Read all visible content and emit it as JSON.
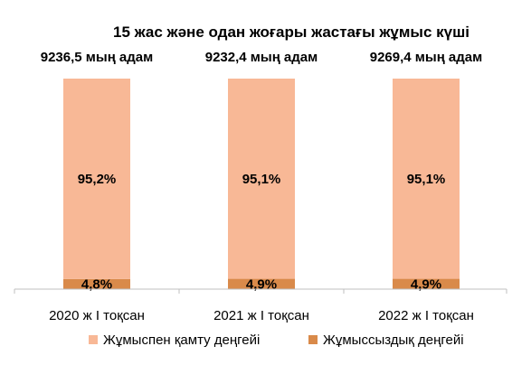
{
  "chart_data": {
    "type": "bar",
    "stacked": true,
    "percent_stacked": true,
    "title": "15 жас және одан жоғары жастағы жұмыс күші",
    "categories": [
      "2020 ж I тоқсан",
      "2021 ж I тоқсан",
      "2022 ж I тоқсан"
    ],
    "totals": [
      "9236,5 мың адам",
      "9232,4 мың адам",
      "9269,4 мың адам"
    ],
    "series": [
      {
        "name": "Жұмыссыздық деңгейі",
        "values": [
          4.8,
          4.9,
          4.9
        ],
        "labels": [
          "4,8%",
          "4,9%",
          "4,9%"
        ],
        "color": "#D98A4A"
      },
      {
        "name": "Жұмыспен қамту деңгейі",
        "values": [
          95.2,
          95.1,
          95.1
        ],
        "labels": [
          "95,2%",
          "95,1%",
          "95,1%"
        ],
        "color": "#F8B896"
      }
    ],
    "ylim": [
      0,
      100
    ],
    "legend_position": "bottom",
    "grid": false
  }
}
